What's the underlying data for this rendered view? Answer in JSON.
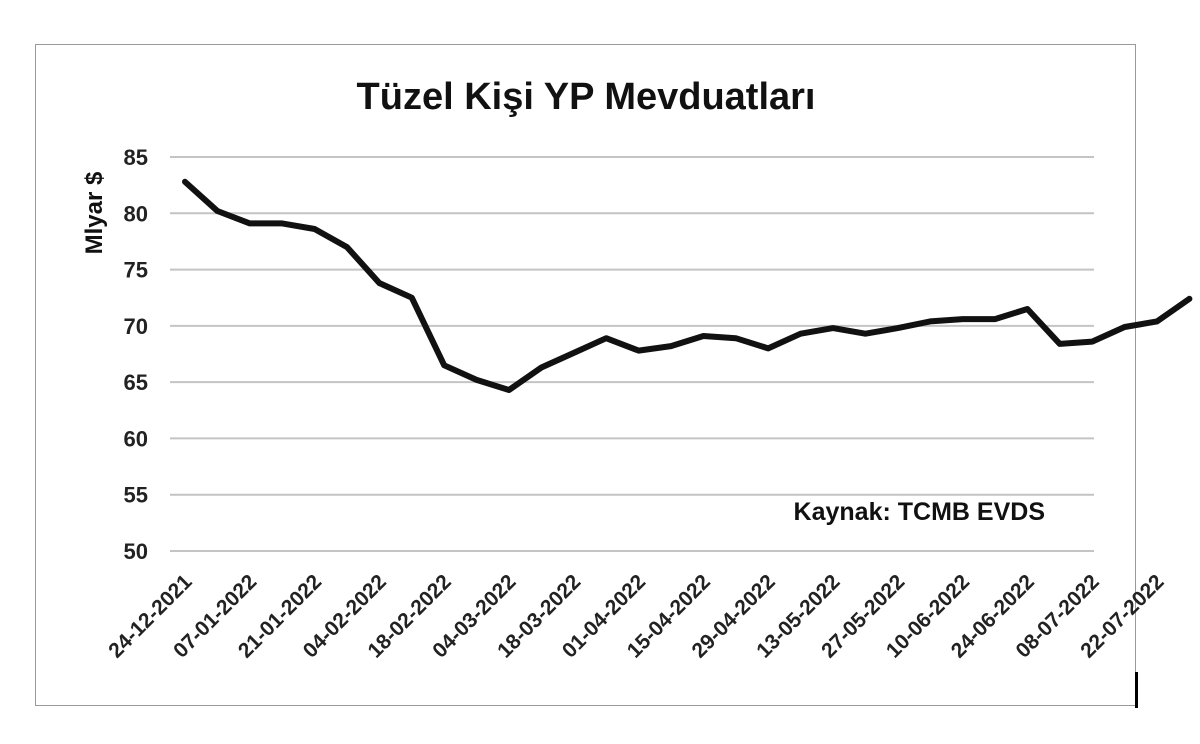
{
  "chart_data": {
    "type": "line",
    "title": "Tüzel Kişi YP Mevduatları",
    "ylabel": "Mlyar $",
    "xlabel": "",
    "source": "Kaynak: TCMB EVDS",
    "ylim": [
      50,
      85
    ],
    "yticks": [
      "85",
      "80",
      "75",
      "70",
      "65",
      "60",
      "55",
      "50"
    ],
    "xtick_labels": [
      "24-12-2021",
      "07-01-2022",
      "21-01-2022",
      "04-02-2022",
      "18-02-2022",
      "04-03-2022",
      "18-03-2022",
      "01-04-2022",
      "15-04-2022",
      "29-04-2022",
      "13-05-2022",
      "27-05-2022",
      "10-06-2022",
      "24-06-2022",
      "08-07-2022",
      "22-07-2022"
    ],
    "grid": true,
    "legend": "none",
    "line_color": "#111111",
    "series": [
      {
        "x": [
          "24-12-2021",
          "31-12-2021",
          "07-01-2022",
          "14-01-2022",
          "21-01-2022",
          "28-01-2022",
          "04-02-2022",
          "11-02-2022",
          "18-02-2022",
          "25-02-2022",
          "04-03-2022",
          "11-03-2022",
          "18-03-2022",
          "25-03-2022",
          "01-04-2022",
          "08-04-2022",
          "15-04-2022",
          "22-04-2022",
          "29-04-2022",
          "06-05-2022",
          "13-05-2022",
          "20-05-2022",
          "27-05-2022",
          "03-06-2022",
          "10-06-2022",
          "17-06-2022",
          "24-06-2022",
          "01-07-2022",
          "08-07-2022",
          "15-07-2022",
          "22-07-2022",
          "29-07-2022"
        ],
        "values": [
          82.8,
          80.2,
          79.1,
          79.1,
          78.6,
          77.0,
          73.8,
          72.5,
          66.5,
          65.2,
          64.3,
          66.3,
          67.6,
          68.9,
          67.8,
          68.2,
          69.1,
          68.9,
          68.0,
          69.3,
          69.8,
          69.3,
          69.8,
          70.4,
          70.6,
          70.6,
          71.5,
          68.4,
          68.6,
          69.9,
          70.4,
          72.4
        ]
      }
    ]
  }
}
